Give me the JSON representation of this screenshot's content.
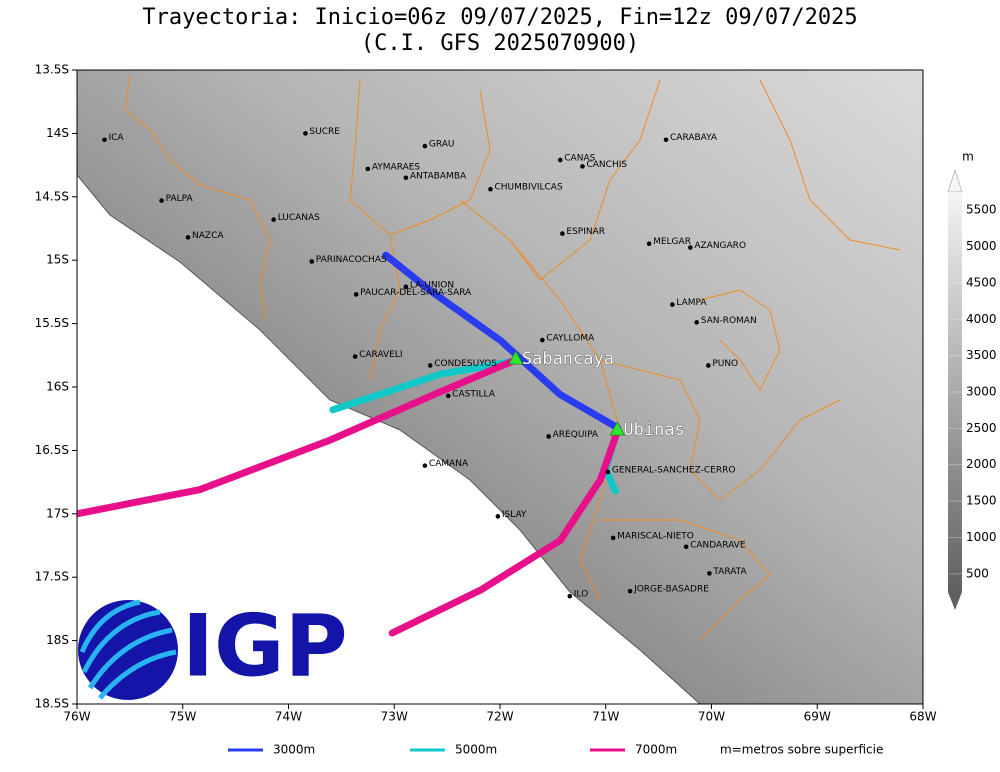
{
  "title": [
    "Trayectoria: Inicio=06z 09/07/2025, Fin=12z 09/07/2025",
    "(C.I. GFS 2025070900)"
  ],
  "map": {
    "lonlim": [
      -76,
      -68
    ],
    "latlim": [
      -13.5,
      -18.5
    ],
    "lonticks": [
      {
        "value": -76,
        "label": "76W"
      },
      {
        "value": -75,
        "label": "75W"
      },
      {
        "value": -74,
        "label": "74W"
      },
      {
        "value": -73,
        "label": "73W"
      },
      {
        "value": -72,
        "label": "72W"
      },
      {
        "value": -71,
        "label": "71W"
      },
      {
        "value": -70,
        "label": "70W"
      },
      {
        "value": -69,
        "label": "69W"
      },
      {
        "value": -68,
        "label": "68W"
      }
    ],
    "latticks": [
      {
        "value": -13.5,
        "label": "13.5S"
      },
      {
        "value": -14,
        "label": "14S"
      },
      {
        "value": -14.5,
        "label": "14.5S"
      },
      {
        "value": -15,
        "label": "15S"
      },
      {
        "value": -15.5,
        "label": "15.5S"
      },
      {
        "value": -16,
        "label": "16S"
      },
      {
        "value": -16.5,
        "label": "16.5S"
      },
      {
        "value": -17,
        "label": "17S"
      },
      {
        "value": -17.5,
        "label": "17.5S"
      },
      {
        "value": -18,
        "label": "18S"
      },
      {
        "value": -18.5,
        "label": "18.5S"
      }
    ],
    "places": [
      {
        "label": "ICA",
        "lon": -75.74,
        "lat": -14.05
      },
      {
        "label": "SUCRE",
        "lon": -73.84,
        "lat": -14.0
      },
      {
        "label": "GRAU",
        "lon": -72.71,
        "lat": -14.1
      },
      {
        "label": "AYMARAES",
        "lon": -73.25,
        "lat": -14.28
      },
      {
        "label": "ANTABAMBA",
        "lon": -72.89,
        "lat": -14.35
      },
      {
        "label": "CHUMBIVILCAS",
        "lon": -72.09,
        "lat": -14.44
      },
      {
        "label": "CANAS",
        "lon": -71.43,
        "lat": -14.21
      },
      {
        "label": "CANCHIS",
        "lon": -71.22,
        "lat": -14.26
      },
      {
        "label": "CARABAYA",
        "lon": -70.43,
        "lat": -14.05
      },
      {
        "label": "PALPA",
        "lon": -75.2,
        "lat": -14.53
      },
      {
        "label": "LUCANAS",
        "lon": -74.14,
        "lat": -14.68
      },
      {
        "label": "NAZCA",
        "lon": -74.95,
        "lat": -14.82
      },
      {
        "label": "ESPINAR",
        "lon": -71.41,
        "lat": -14.79
      },
      {
        "label": "MELGAR",
        "lon": -70.59,
        "lat": -14.87
      },
      {
        "label": "AZANGARO",
        "lon": -70.2,
        "lat": -14.9
      },
      {
        "label": "PARINACOCHAS",
        "lon": -73.78,
        "lat": -15.01
      },
      {
        "label": "LA-UNION",
        "lon": -72.89,
        "lat": -15.21
      },
      {
        "label": "PAUCAR-DEL-SARA-SARA",
        "lon": -73.36,
        "lat": -15.27
      },
      {
        "label": "LAMPA",
        "lon": -70.37,
        "lat": -15.35
      },
      {
        "label": "SAN-ROMAN",
        "lon": -70.14,
        "lat": -15.49
      },
      {
        "label": "CAYLLOMA",
        "lon": -71.6,
        "lat": -15.63
      },
      {
        "label": "CARAVELI",
        "lon": -73.37,
        "lat": -15.76
      },
      {
        "label": "CONDESUYOS",
        "lon": -72.66,
        "lat": -15.83
      },
      {
        "label": "PUNO",
        "lon": -70.03,
        "lat": -15.83
      },
      {
        "label": "CASTILLA",
        "lon": -72.49,
        "lat": -16.07
      },
      {
        "label": "AREQUIPA",
        "lon": -71.54,
        "lat": -16.39
      },
      {
        "label": "CAMANA",
        "lon": -72.71,
        "lat": -16.62
      },
      {
        "label": "GENERAL-SANCHEZ-CERRO",
        "lon": -70.98,
        "lat": -16.67
      },
      {
        "label": "ISLAY",
        "lon": -72.02,
        "lat": -17.02
      },
      {
        "label": "MARISCAL-NIETO",
        "lon": -70.93,
        "lat": -17.19
      },
      {
        "label": "CANDARAVE",
        "lon": -70.24,
        "lat": -17.26
      },
      {
        "label": "TARATA",
        "lon": -70.02,
        "lat": -17.47
      },
      {
        "label": "ILO",
        "lon": -71.34,
        "lat": -17.65
      },
      {
        "label": "JORGE-BASADRE",
        "lon": -70.77,
        "lat": -17.61
      }
    ],
    "volcanoes": [
      {
        "label": "Sabancaya",
        "lon": -71.85,
        "lat": -15.78
      },
      {
        "label": "Ubinas",
        "lon": -70.89,
        "lat": -16.34
      }
    ],
    "trajectories": [
      {
        "name": "3000m",
        "color": "#2a3cf0",
        "tracks": [
          {
            "lon": [
              -70.89,
              -71.43,
              -72.0,
              -72.66,
              -73.08
            ],
            "lat": [
              -16.32,
              -16.06,
              -15.63,
              -15.24,
              -14.96
            ]
          }
        ]
      },
      {
        "name": "5000m",
        "color": "#10c8c8",
        "tracks": [
          {
            "lon": [
              -71.89,
              -72.57,
              -73.07,
              -73.58
            ],
            "lat": [
              -15.8,
              -15.9,
              -16.04,
              -16.18
            ]
          },
          {
            "lon": [
              -70.89,
              -71.0,
              -70.91
            ],
            "lat": [
              -16.34,
              -16.65,
              -16.82
            ]
          }
        ]
      },
      {
        "name": "7000m",
        "color": "#e8108a",
        "tracks": [
          {
            "lon": [
              -71.89,
              -72.57,
              -73.61,
              -74.84,
              -76.0
            ],
            "lat": [
              -15.8,
              -16.04,
              -16.42,
              -16.81,
              -17.0
            ]
          },
          {
            "lon": [
              -70.89,
              -71.05,
              -71.43,
              -72.18,
              -73.02
            ],
            "lat": [
              -16.35,
              -16.73,
              -17.21,
              -17.6,
              -17.94
            ]
          }
        ]
      }
    ],
    "note": "m=metros sobre superficie"
  },
  "colorbar": {
    "unit": "m",
    "ticks": [
      500,
      1000,
      1500,
      2000,
      2500,
      3000,
      3500,
      4000,
      4500,
      5000,
      5500
    ]
  },
  "logo": "IGP"
}
